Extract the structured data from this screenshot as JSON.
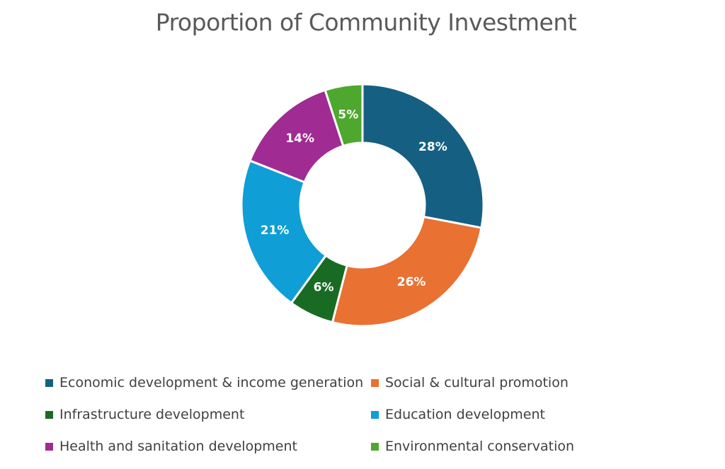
{
  "chart_data": {
    "type": "pie",
    "title": "Proportion of Community Investment",
    "categories": [
      "Economic development & income generation",
      "Social & cultural promotion",
      "Infrastructure development",
      "Education development",
      "Health and sanitation development",
      "Environmental conservation"
    ],
    "values": [
      28,
      26,
      6,
      21,
      14,
      5
    ],
    "value_labels": [
      "28%",
      "26%",
      "6%",
      "21%",
      "14%",
      "5%"
    ],
    "colors": [
      "#156082",
      "#E97132",
      "#196B24",
      "#0F9ED5",
      "#A02B93",
      "#4EA72E"
    ],
    "donut": true,
    "legend_position": "bottom"
  }
}
